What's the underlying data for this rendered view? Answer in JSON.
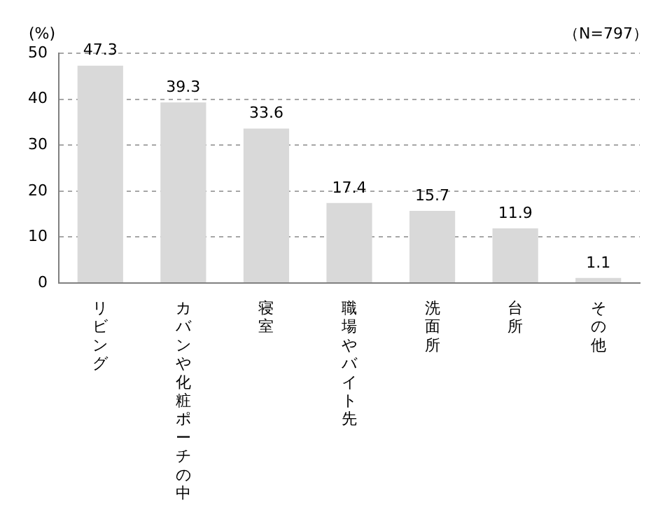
{
  "chart_data": {
    "type": "bar",
    "ylabel": "(%)",
    "annotations": [
      "（N=797）"
    ],
    "categories": [
      "リビング",
      "カバンや化粧ポーチの中",
      "寝室",
      "職場やバイト先",
      "洗面所",
      "台所",
      "その他"
    ],
    "values": [
      47.3,
      39.3,
      33.6,
      17.4,
      15.7,
      11.9,
      1.1
    ],
    "color": "#d9d9d9",
    "ylim": [
      0,
      50
    ],
    "yticks": [
      0,
      10,
      20,
      30,
      40,
      50
    ],
    "grid": "y",
    "data_labels": true
  }
}
